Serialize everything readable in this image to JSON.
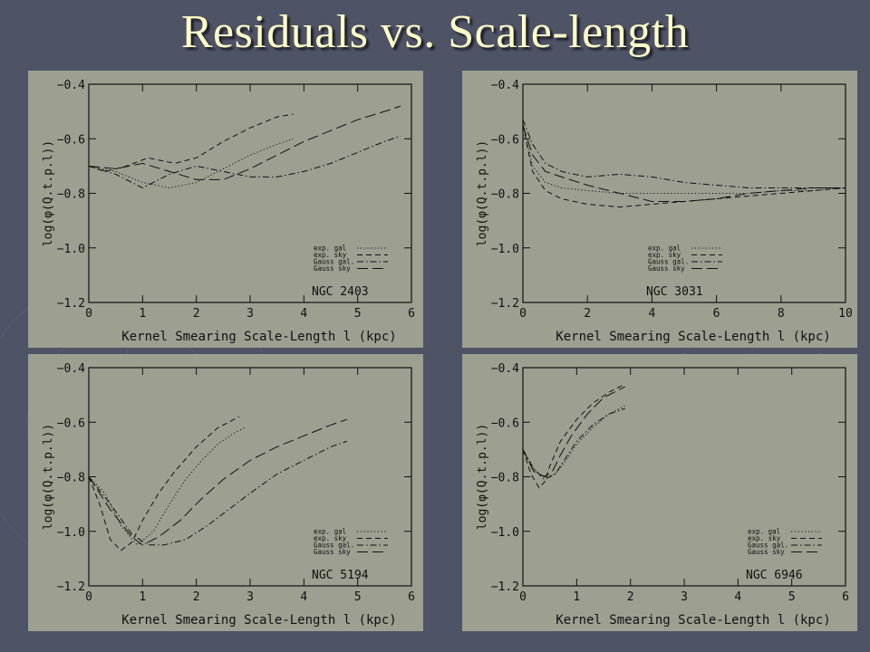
{
  "page": {
    "title": "Residuals vs. Scale-length",
    "background_color": "#4f5366",
    "title_color": "#ffffc8",
    "panel_color": "#9d9f91"
  },
  "chart_data": [
    {
      "type": "line",
      "galaxy": "NGC 2403",
      "xlabel": "Kernel Smearing Scale-Length l (kpc)",
      "ylabel": "log(φ(Q.t.p.l))",
      "xlim": [
        0,
        6
      ],
      "ylim": [
        -1.2,
        -0.4
      ],
      "xticks": [
        "0",
        "1",
        "2",
        "3",
        "4",
        "5",
        "6"
      ],
      "yticks": [
        "−0.4",
        "−0.6",
        "−0.8",
        "−1.0",
        "−1.2"
      ],
      "legend_position": "lower-right",
      "series": [
        {
          "name": "exp. gal",
          "style": "dotted",
          "x": [
            0,
            0.5,
            1.0,
            1.5,
            2.0,
            2.5,
            3.0,
            3.5,
            3.8
          ],
          "y": [
            -0.7,
            -0.72,
            -0.76,
            -0.78,
            -0.76,
            -0.71,
            -0.66,
            -0.62,
            -0.6
          ]
        },
        {
          "name": "exp. sky",
          "style": "dashed",
          "x": [
            0,
            0.3,
            0.7,
            1.1,
            1.6,
            2.0,
            2.5,
            3.0,
            3.5,
            3.8
          ],
          "y": [
            -0.7,
            -0.72,
            -0.7,
            -0.67,
            -0.69,
            -0.67,
            -0.61,
            -0.56,
            -0.52,
            -0.51
          ]
        },
        {
          "name": "Gauss gal.",
          "style": "dashdot",
          "x": [
            0,
            0.5,
            1.0,
            1.5,
            2.0,
            2.5,
            3.0,
            3.5,
            4.0,
            4.5,
            5.0,
            5.5,
            5.8
          ],
          "y": [
            -0.7,
            -0.73,
            -0.78,
            -0.73,
            -0.7,
            -0.72,
            -0.74,
            -0.74,
            -0.72,
            -0.69,
            -0.65,
            -0.61,
            -0.59
          ]
        },
        {
          "name": "Gauss sky",
          "style": "longdash",
          "x": [
            0,
            0.5,
            1.0,
            1.5,
            2.0,
            2.5,
            3.0,
            3.5,
            4.0,
            4.5,
            5.0,
            5.5,
            5.8
          ],
          "y": [
            -0.7,
            -0.71,
            -0.69,
            -0.72,
            -0.75,
            -0.75,
            -0.71,
            -0.66,
            -0.61,
            -0.57,
            -0.53,
            -0.5,
            -0.48
          ]
        }
      ]
    },
    {
      "type": "line",
      "galaxy": "NGC 3031",
      "xlabel": "Kernel Smearing Scale-Length l (kpc)",
      "ylabel": "log(φ(Q.t.p.l))",
      "xlim": [
        0,
        10
      ],
      "ylim": [
        -1.2,
        -0.4
      ],
      "xticks": [
        "0",
        "2",
        "4",
        "6",
        "8",
        "10"
      ],
      "yticks": [
        "−0.4",
        "−0.6",
        "−0.8",
        "−1.0",
        "−1.2"
      ],
      "legend_position": "lower-left",
      "series": [
        {
          "name": "exp. gal",
          "style": "dotted",
          "x": [
            0,
            0.3,
            0.7,
            1.2,
            2,
            3,
            4,
            5,
            6,
            7,
            8,
            9,
            10
          ],
          "y": [
            -0.55,
            -0.7,
            -0.76,
            -0.78,
            -0.79,
            -0.8,
            -0.8,
            -0.8,
            -0.8,
            -0.8,
            -0.79,
            -0.79,
            -0.78
          ]
        },
        {
          "name": "exp. sky",
          "style": "dashed",
          "x": [
            0,
            0.3,
            0.7,
            1.2,
            2,
            3,
            4,
            5,
            6,
            7,
            8,
            9,
            10
          ],
          "y": [
            -0.55,
            -0.72,
            -0.79,
            -0.82,
            -0.84,
            -0.85,
            -0.84,
            -0.83,
            -0.82,
            -0.81,
            -0.8,
            -0.79,
            -0.78
          ]
        },
        {
          "name": "Gauss gal.",
          "style": "dashdot",
          "x": [
            0,
            0.3,
            0.7,
            1.2,
            2,
            3,
            4,
            5,
            6,
            7,
            8,
            9,
            10
          ],
          "y": [
            -0.53,
            -0.62,
            -0.69,
            -0.72,
            -0.74,
            -0.73,
            -0.74,
            -0.76,
            -0.77,
            -0.78,
            -0.78,
            -0.78,
            -0.78
          ]
        },
        {
          "name": "Gauss sky",
          "style": "longdash",
          "x": [
            0,
            0.3,
            0.7,
            1.2,
            2,
            3,
            4,
            5,
            6,
            7,
            8,
            9,
            10
          ],
          "y": [
            -0.55,
            -0.66,
            -0.72,
            -0.74,
            -0.77,
            -0.8,
            -0.83,
            -0.83,
            -0.82,
            -0.8,
            -0.79,
            -0.78,
            -0.78
          ]
        }
      ]
    },
    {
      "type": "line",
      "galaxy": "NGC 5194",
      "xlabel": "Kernel Smearing Scale-Length l (kpc)",
      "ylabel": "log(φ(Q.t.p.l))",
      "xlim": [
        0,
        6
      ],
      "ylim": [
        -1.2,
        -0.4
      ],
      "xticks": [
        "0",
        "1",
        "2",
        "3",
        "4",
        "5",
        "6"
      ],
      "yticks": [
        "−0.4",
        "−0.6",
        "−0.8",
        "−1.0",
        "−1.2"
      ],
      "legend_position": "lower-right",
      "series": [
        {
          "name": "exp. gal",
          "style": "dotted",
          "x": [
            0,
            0.3,
            0.6,
            0.9,
            1.2,
            1.5,
            1.8,
            2.1,
            2.4,
            2.7,
            2.9
          ],
          "y": [
            -0.8,
            -0.86,
            -0.98,
            -1.05,
            -1.0,
            -0.9,
            -0.81,
            -0.74,
            -0.68,
            -0.64,
            -0.62
          ]
        },
        {
          "name": "exp. sky",
          "style": "dashed",
          "x": [
            0,
            0.2,
            0.4,
            0.6,
            0.8,
            1.0,
            1.3,
            1.6,
            2.0,
            2.4,
            2.8
          ],
          "y": [
            -0.8,
            -0.9,
            -1.03,
            -1.07,
            -1.04,
            -0.96,
            -0.86,
            -0.78,
            -0.69,
            -0.62,
            -0.58
          ]
        },
        {
          "name": "Gauss gal.",
          "style": "dashdot",
          "x": [
            0,
            0.4,
            0.8,
            1.1,
            1.4,
            1.8,
            2.2,
            2.6,
            3.0,
            3.5,
            4.0,
            4.5,
            4.8
          ],
          "y": [
            -0.8,
            -0.9,
            -1.01,
            -1.05,
            -1.05,
            -1.03,
            -0.98,
            -0.92,
            -0.86,
            -0.79,
            -0.74,
            -0.69,
            -0.67
          ]
        },
        {
          "name": "Gauss sky",
          "style": "longdash",
          "x": [
            0,
            0.4,
            0.8,
            1.0,
            1.3,
            1.7,
            2.1,
            2.5,
            3.0,
            3.5,
            4.0,
            4.5,
            4.8
          ],
          "y": [
            -0.8,
            -0.92,
            -1.02,
            -1.05,
            -1.02,
            -0.96,
            -0.88,
            -0.81,
            -0.74,
            -0.69,
            -0.65,
            -0.61,
            -0.59
          ]
        }
      ]
    },
    {
      "type": "line",
      "galaxy": "NGC 6946",
      "xlabel": "Kernel Smearing Scale-Length l (kpc)",
      "ylabel": "log(φ(Q.t.p.l))",
      "xlim": [
        0,
        6
      ],
      "ylim": [
        -1.2,
        -0.4
      ],
      "xticks": [
        "0",
        "1",
        "2",
        "3",
        "4",
        "5",
        "6"
      ],
      "yticks": [
        "−0.4",
        "−0.6",
        "−0.8",
        "−1.0",
        "−1.2"
      ],
      "legend_position": "lower-right",
      "series": [
        {
          "name": "exp. gal",
          "style": "dotted",
          "x": [
            0,
            0.15,
            0.3,
            0.45,
            0.6,
            0.8,
            1.0,
            1.3,
            1.6,
            1.9
          ],
          "y": [
            -0.7,
            -0.76,
            -0.79,
            -0.8,
            -0.79,
            -0.74,
            -0.68,
            -0.62,
            -0.57,
            -0.54
          ]
        },
        {
          "name": "exp. sky",
          "style": "dashed",
          "x": [
            0,
            0.15,
            0.3,
            0.4,
            0.5,
            0.7,
            1.0,
            1.3,
            1.6,
            1.9
          ],
          "y": [
            -0.7,
            -0.79,
            -0.84,
            -0.82,
            -0.76,
            -0.67,
            -0.59,
            -0.53,
            -0.49,
            -0.46
          ]
        },
        {
          "name": "Gauss gal.",
          "style": "dashdot",
          "x": [
            0,
            0.2,
            0.4,
            0.6,
            0.8,
            1.0,
            1.3,
            1.6,
            1.9
          ],
          "y": [
            -0.7,
            -0.77,
            -0.81,
            -0.79,
            -0.73,
            -0.67,
            -0.61,
            -0.57,
            -0.55
          ]
        },
        {
          "name": "Gauss sky",
          "style": "longdash",
          "x": [
            0,
            0.2,
            0.4,
            0.55,
            0.7,
            0.9,
            1.2,
            1.5,
            1.9
          ],
          "y": [
            -0.7,
            -0.78,
            -0.8,
            -0.78,
            -0.72,
            -0.65,
            -0.57,
            -0.51,
            -0.47
          ]
        }
      ]
    }
  ]
}
